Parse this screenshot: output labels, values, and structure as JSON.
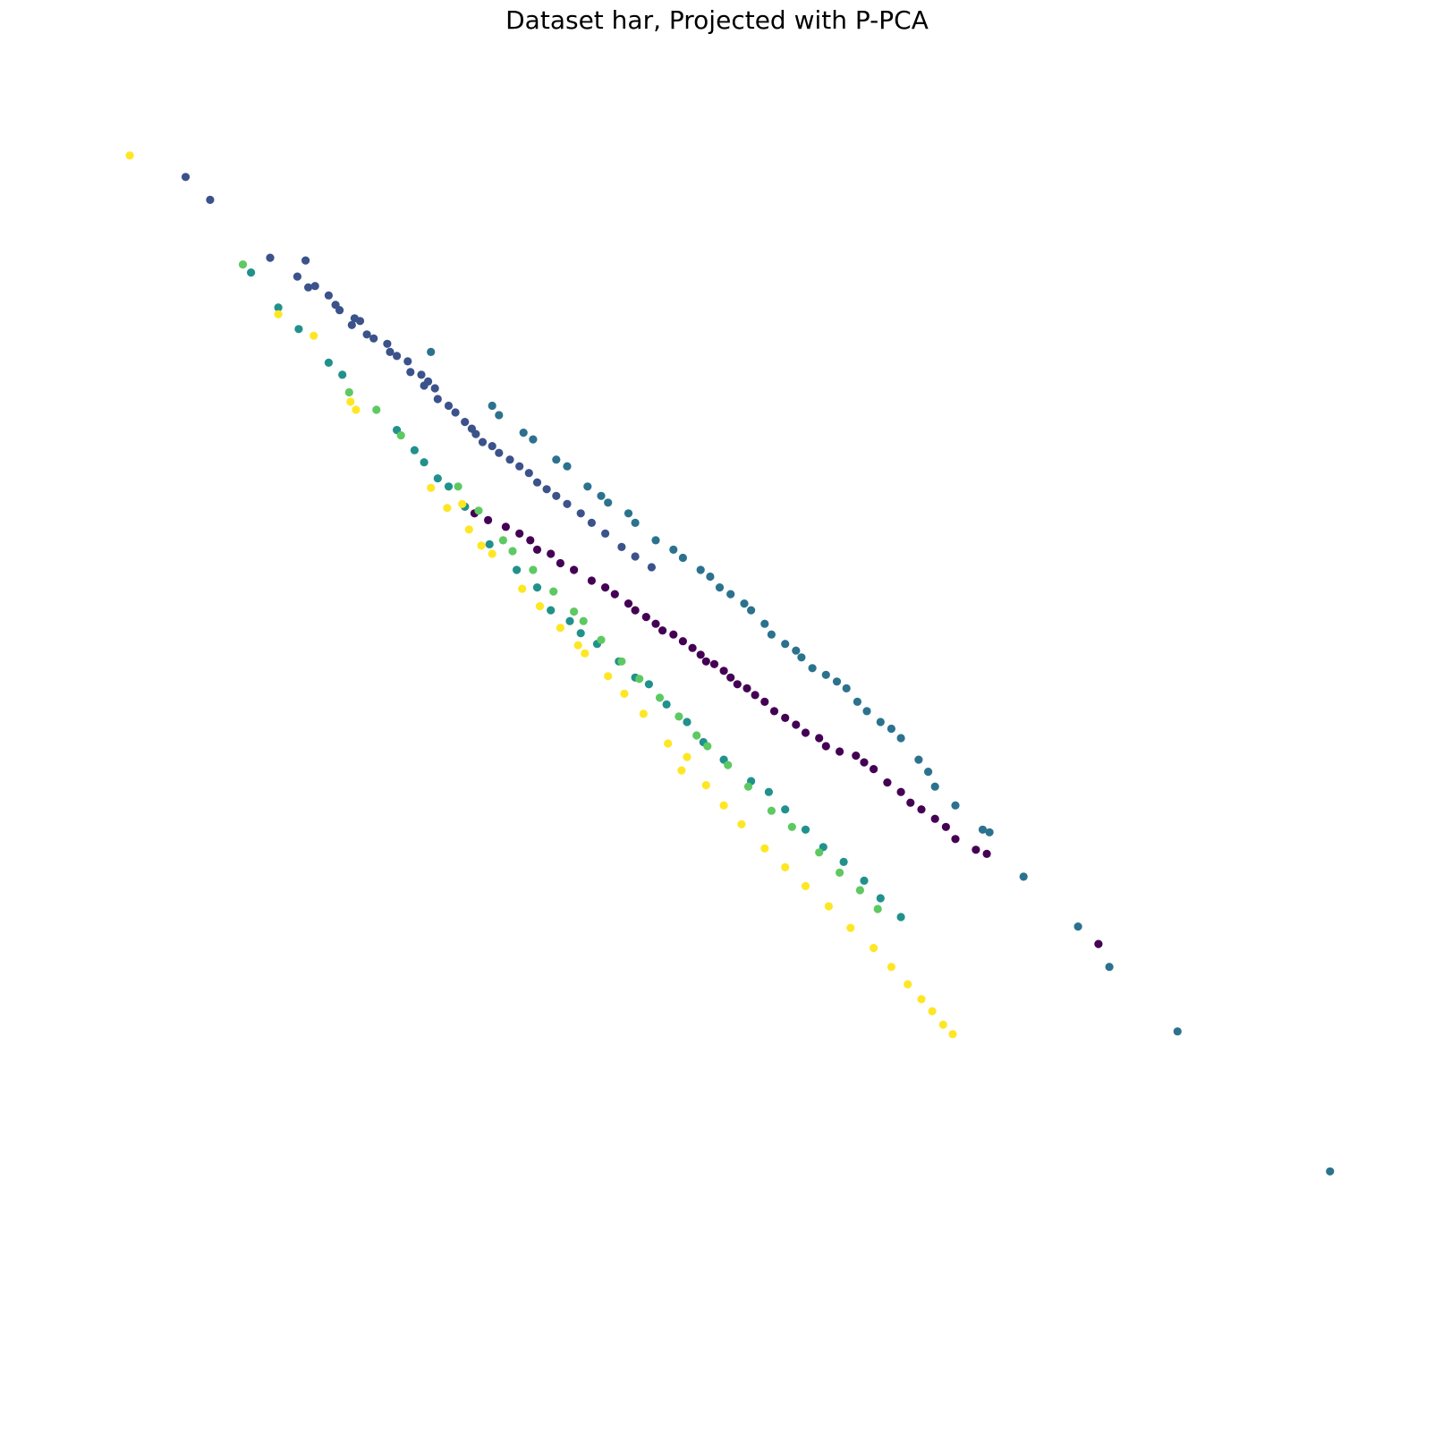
{
  "chart_data": {
    "type": "scatter",
    "title": "Dataset har, Projected with P-PCA",
    "xlabel": "",
    "ylabel": "",
    "axes_visible": false,
    "grid": false,
    "legend": "none",
    "xlim": [
      0,
      100
    ],
    "ylim": [
      0,
      100
    ],
    "colormap": "viridis",
    "class_colors": [
      "#440154",
      "#3b528b",
      "#2c728e",
      "#21918c",
      "#5ec962",
      "#fde725"
    ],
    "series": [
      {
        "class": 0,
        "points": [
          [
            31.5,
            67.0
          ],
          [
            32.2,
            66.5
          ],
          [
            33.2,
            66.0
          ],
          [
            34.5,
            65.5
          ],
          [
            35.5,
            65.0
          ],
          [
            36.3,
            64.5
          ],
          [
            36.8,
            63.8
          ],
          [
            37.8,
            63.5
          ],
          [
            38.5,
            62.8
          ],
          [
            39.5,
            62.3
          ],
          [
            40.8,
            61.5
          ],
          [
            41.8,
            61.0
          ],
          [
            42.5,
            60.5
          ],
          [
            43.5,
            59.8
          ],
          [
            44.0,
            59.3
          ],
          [
            44.8,
            58.8
          ],
          [
            45.5,
            58.3
          ],
          [
            46.0,
            57.8
          ],
          [
            46.8,
            57.5
          ],
          [
            47.5,
            57.0
          ],
          [
            48.2,
            56.5
          ],
          [
            48.8,
            56.0
          ],
          [
            49.2,
            55.5
          ],
          [
            49.8,
            55.3
          ],
          [
            50.5,
            54.8
          ],
          [
            51.0,
            54.3
          ],
          [
            51.5,
            53.8
          ],
          [
            52.2,
            53.5
          ],
          [
            52.8,
            53.0
          ],
          [
            53.5,
            52.5
          ],
          [
            54.2,
            51.8
          ],
          [
            55.0,
            51.3
          ],
          [
            55.8,
            50.8
          ],
          [
            56.5,
            50.2
          ],
          [
            57.5,
            49.8
          ],
          [
            58.0,
            49.2
          ],
          [
            59.0,
            48.8
          ],
          [
            60.2,
            48.5
          ],
          [
            60.8,
            48.0
          ],
          [
            61.5,
            47.5
          ],
          [
            62.5,
            46.5
          ],
          [
            63.5,
            45.8
          ],
          [
            64.2,
            45.0
          ],
          [
            65.0,
            44.5
          ],
          [
            66.0,
            43.8
          ],
          [
            66.8,
            43.2
          ],
          [
            67.5,
            42.3
          ],
          [
            69.0,
            41.5
          ],
          [
            69.8,
            41.2
          ],
          [
            78.0,
            34.5
          ]
        ]
      },
      {
        "class": 1,
        "points": [
          [
            11.0,
            91.5
          ],
          [
            12.8,
            89.8
          ],
          [
            17.2,
            85.5
          ],
          [
            19.8,
            85.3
          ],
          [
            19.2,
            84.1
          ],
          [
            20.0,
            83.3
          ],
          [
            20.5,
            83.4
          ],
          [
            21.5,
            82.7
          ],
          [
            22.0,
            82.0
          ],
          [
            22.3,
            81.6
          ],
          [
            23.4,
            81.0
          ],
          [
            23.8,
            80.8
          ],
          [
            23.2,
            80.5
          ],
          [
            24.3,
            79.8
          ],
          [
            24.8,
            79.5
          ],
          [
            25.8,
            79.1
          ],
          [
            26.0,
            78.5
          ],
          [
            26.5,
            78.2
          ],
          [
            27.3,
            77.8
          ],
          [
            27.5,
            77.0
          ],
          [
            28.3,
            76.8
          ],
          [
            28.8,
            76.3
          ],
          [
            28.5,
            76.0
          ],
          [
            29.3,
            75.8
          ],
          [
            29.5,
            75.0
          ],
          [
            30.3,
            74.5
          ],
          [
            30.8,
            74.0
          ],
          [
            31.5,
            73.3
          ],
          [
            32.0,
            72.8
          ],
          [
            32.3,
            72.4
          ],
          [
            32.8,
            71.8
          ],
          [
            33.5,
            71.5
          ],
          [
            34.0,
            71.0
          ],
          [
            34.8,
            70.5
          ],
          [
            35.5,
            70.0
          ],
          [
            36.2,
            69.5
          ],
          [
            36.8,
            68.8
          ],
          [
            37.5,
            68.3
          ],
          [
            38.2,
            67.8
          ],
          [
            39.0,
            67.2
          ],
          [
            40.0,
            66.5
          ],
          [
            40.8,
            65.8
          ],
          [
            41.8,
            65.0
          ],
          [
            43.0,
            64.0
          ],
          [
            44.0,
            63.3
          ],
          [
            45.2,
            62.5
          ]
        ]
      },
      {
        "class": 2,
        "points": [
          [
            29.0,
            78.5
          ],
          [
            33.5,
            74.5
          ],
          [
            34.0,
            73.8
          ],
          [
            35.8,
            72.5
          ],
          [
            36.5,
            72.0
          ],
          [
            38.2,
            70.5
          ],
          [
            39.0,
            70.0
          ],
          [
            40.5,
            68.5
          ],
          [
            41.5,
            67.8
          ],
          [
            42.0,
            67.3
          ],
          [
            43.5,
            66.5
          ],
          [
            44.0,
            65.8
          ],
          [
            45.5,
            64.5
          ],
          [
            46.8,
            63.8
          ],
          [
            47.5,
            63.2
          ],
          [
            48.8,
            62.3
          ],
          [
            49.5,
            61.8
          ],
          [
            50.2,
            61.0
          ],
          [
            51.0,
            60.5
          ],
          [
            52.0,
            59.8
          ],
          [
            52.5,
            59.3
          ],
          [
            53.5,
            58.3
          ],
          [
            54.0,
            57.5
          ],
          [
            55.0,
            56.8
          ],
          [
            55.8,
            56.3
          ],
          [
            56.2,
            55.8
          ],
          [
            57.0,
            55.0
          ],
          [
            58.0,
            54.5
          ],
          [
            58.8,
            54.0
          ],
          [
            59.5,
            53.5
          ],
          [
            60.3,
            52.5
          ],
          [
            61.0,
            51.8
          ],
          [
            62.0,
            51.0
          ],
          [
            62.8,
            50.5
          ],
          [
            63.5,
            49.8
          ],
          [
            64.8,
            48.2
          ],
          [
            65.5,
            47.3
          ],
          [
            66.0,
            46.2
          ],
          [
            67.5,
            44.8
          ],
          [
            69.5,
            43.0
          ],
          [
            70.0,
            42.8
          ],
          [
            72.5,
            39.5
          ],
          [
            76.5,
            35.8
          ],
          [
            78.8,
            32.8
          ],
          [
            83.8,
            28.0
          ],
          [
            95.0,
            17.6
          ]
        ]
      },
      {
        "class": 3,
        "points": [
          [
            15.8,
            84.4
          ],
          [
            17.8,
            81.8
          ],
          [
            19.3,
            80.2
          ],
          [
            21.5,
            77.7
          ],
          [
            22.5,
            76.8
          ],
          [
            26.5,
            72.7
          ],
          [
            27.8,
            71.2
          ],
          [
            28.5,
            70.3
          ],
          [
            29.5,
            69.1
          ],
          [
            30.3,
            68.5
          ],
          [
            31.5,
            67.0
          ],
          [
            33.3,
            64.2
          ],
          [
            35.3,
            62.3
          ],
          [
            36.8,
            61.0
          ],
          [
            37.8,
            59.3
          ],
          [
            39.2,
            58.5
          ],
          [
            40.0,
            57.6
          ],
          [
            41.2,
            56.8
          ],
          [
            42.8,
            55.5
          ],
          [
            44.0,
            54.3
          ],
          [
            45.0,
            53.8
          ],
          [
            46.3,
            52.3
          ],
          [
            47.8,
            51.0
          ],
          [
            49.0,
            49.5
          ],
          [
            50.5,
            48.2
          ],
          [
            52.5,
            46.6
          ],
          [
            53.8,
            45.8
          ],
          [
            55.0,
            44.5
          ],
          [
            56.5,
            43.0
          ],
          [
            57.8,
            41.7
          ],
          [
            59.3,
            40.6
          ],
          [
            60.8,
            39.2
          ],
          [
            62.0,
            37.9
          ],
          [
            63.5,
            36.5
          ]
        ]
      },
      {
        "class": 4,
        "points": [
          [
            15.2,
            85.0
          ],
          [
            23.0,
            75.5
          ],
          [
            25.0,
            74.2
          ],
          [
            26.8,
            72.3
          ],
          [
            31.0,
            68.5
          ],
          [
            32.5,
            66.7
          ],
          [
            34.3,
            64.5
          ],
          [
            35.0,
            63.7
          ],
          [
            36.5,
            62.3
          ],
          [
            38.0,
            60.7
          ],
          [
            39.5,
            59.2
          ],
          [
            40.2,
            58.5
          ],
          [
            41.5,
            57.1
          ],
          [
            43.0,
            55.5
          ],
          [
            44.3,
            54.2
          ],
          [
            45.8,
            52.8
          ],
          [
            47.2,
            51.4
          ],
          [
            48.5,
            50.0
          ],
          [
            49.3,
            49.2
          ],
          [
            50.8,
            47.8
          ],
          [
            52.3,
            46.2
          ],
          [
            54.0,
            44.4
          ],
          [
            55.5,
            43.2
          ],
          [
            57.5,
            41.3
          ],
          [
            59.0,
            39.8
          ],
          [
            60.5,
            38.5
          ],
          [
            61.8,
            37.1
          ]
        ]
      },
      {
        "class": 5,
        "points": [
          [
            6.9,
            93.1
          ],
          [
            17.8,
            81.3
          ],
          [
            20.4,
            79.7
          ],
          [
            23.1,
            74.8
          ],
          [
            23.5,
            74.2
          ],
          [
            29.0,
            68.4
          ],
          [
            30.2,
            66.9
          ],
          [
            31.3,
            67.2
          ],
          [
            31.8,
            65.3
          ],
          [
            32.7,
            64.1
          ],
          [
            33.5,
            63.5
          ],
          [
            35.7,
            60.9
          ],
          [
            37.0,
            59.6
          ],
          [
            38.5,
            58.0
          ],
          [
            39.8,
            56.7
          ],
          [
            40.3,
            56.1
          ],
          [
            42.0,
            54.4
          ],
          [
            43.2,
            53.1
          ],
          [
            44.6,
            51.6
          ],
          [
            46.4,
            49.4
          ],
          [
            47.8,
            48.4
          ],
          [
            47.4,
            47.4
          ],
          [
            49.2,
            46.3
          ],
          [
            50.5,
            44.8
          ],
          [
            51.8,
            43.4
          ],
          [
            53.5,
            41.6
          ],
          [
            55.0,
            40.2
          ],
          [
            56.5,
            38.8
          ],
          [
            58.2,
            37.3
          ],
          [
            59.8,
            35.7
          ],
          [
            61.5,
            34.2
          ],
          [
            62.8,
            32.8
          ],
          [
            64.0,
            31.5
          ],
          [
            65.0,
            30.4
          ],
          [
            65.8,
            29.5
          ],
          [
            66.6,
            28.5
          ],
          [
            67.3,
            27.8
          ]
        ]
      }
    ]
  }
}
